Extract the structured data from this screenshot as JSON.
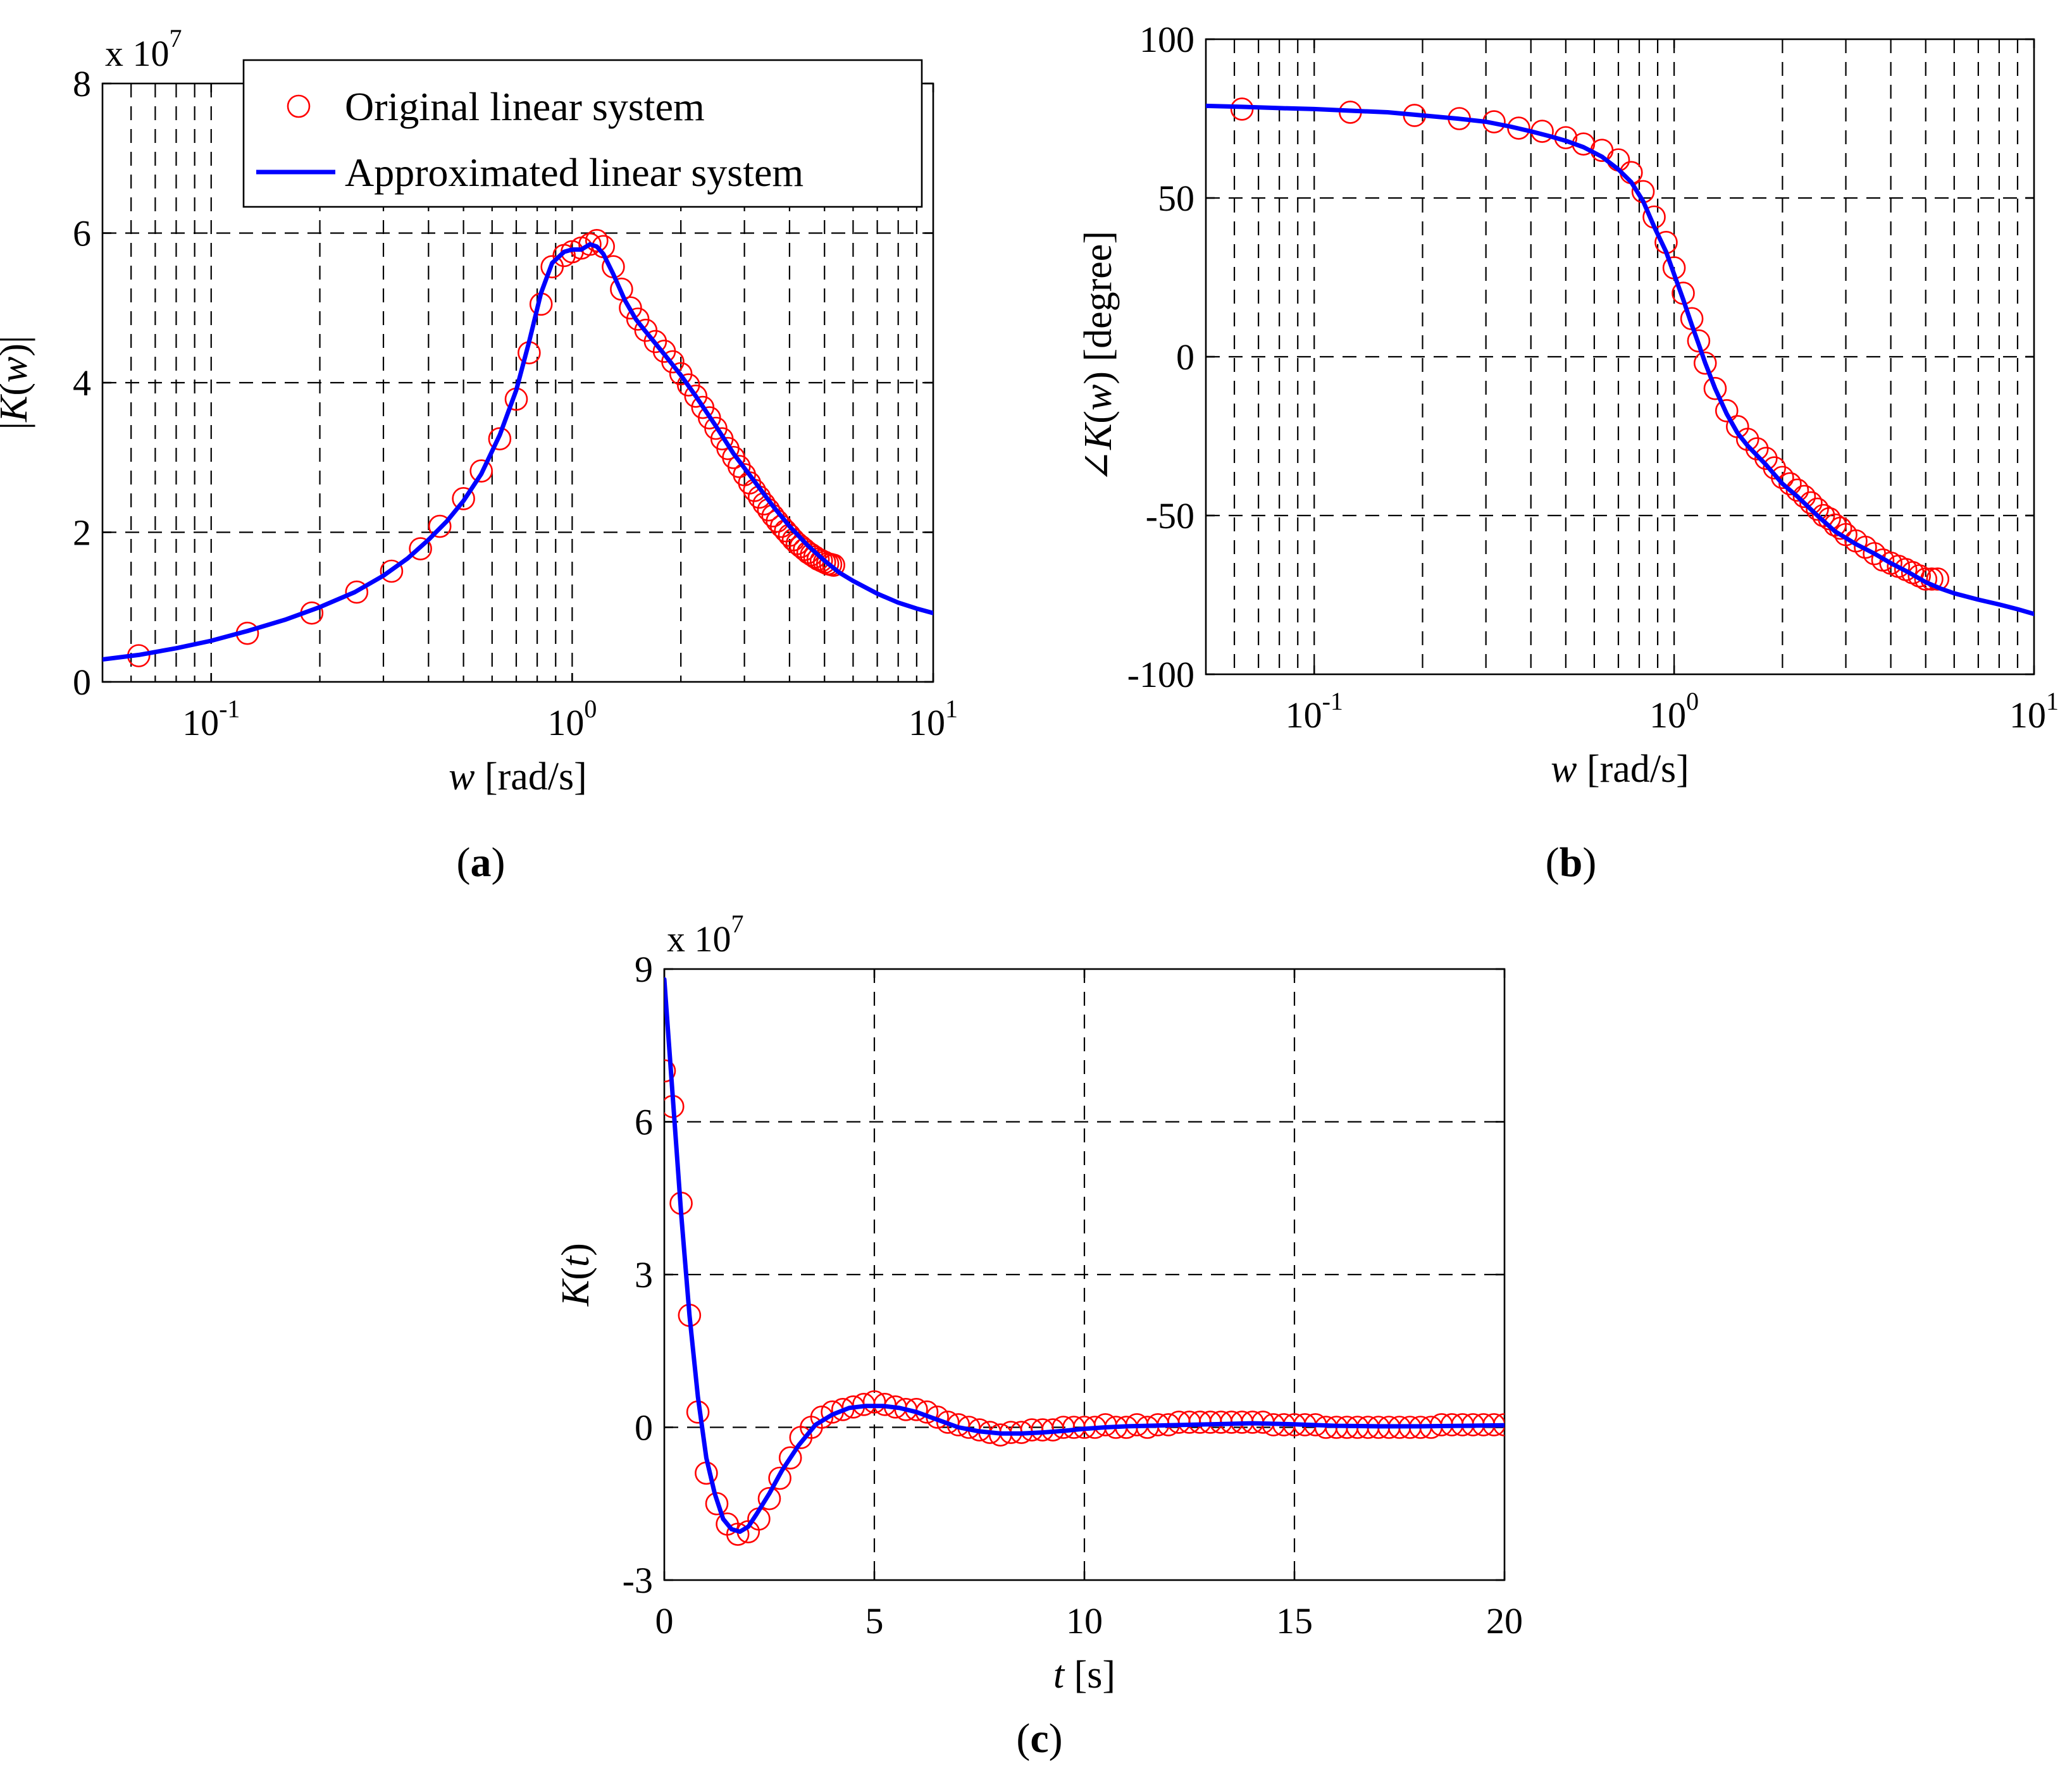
{
  "chart_data": [
    {
      "panel": "a",
      "type": "line",
      "xscale": "log",
      "title": "",
      "xlabel_var": "w",
      "xlabel_unit": " [rad/s]",
      "ylabel_pre": "|",
      "ylabel_var": "K",
      "ylabel_mid": "(",
      "ylabel_var2": "w",
      "ylabel_post": ")|",
      "xlim": [
        0.05,
        10
      ],
      "ylim": [
        0,
        8
      ],
      "y_multiplier_base": "x 10",
      "y_multiplier_exp": "7",
      "xticks": [
        {
          "value": 0.1,
          "base": "10",
          "exp": "-1"
        },
        {
          "value": 1,
          "base": "10",
          "exp": "0"
        },
        {
          "value": 10,
          "base": "10",
          "exp": "1"
        }
      ],
      "yticks": [
        0,
        2,
        4,
        6,
        8
      ],
      "caption": "a",
      "legend": {
        "position": "top",
        "entries": [
          "Original linear system",
          "Approximated linear system"
        ]
      },
      "series": [
        {
          "name": "Original linear system",
          "marker": "circle",
          "color": "#ff0000",
          "x": [
            0.063,
            0.126,
            0.19,
            0.253,
            0.316,
            0.38,
            0.43,
            0.5,
            0.56,
            0.63,
            0.7,
            0.76,
            0.82,
            0.88,
            0.95,
            1.0,
            1.06,
            1.12,
            1.17,
            1.22,
            1.3,
            1.37,
            1.45,
            1.52,
            1.6,
            1.7,
            1.8,
            1.9,
            2.0,
            2.1,
            2.2,
            2.3,
            2.4,
            2.5,
            2.6,
            2.7,
            2.8,
            2.9,
            3.0,
            3.1,
            3.2,
            3.3,
            3.4,
            3.5,
            3.6,
            3.7,
            3.8,
            3.9,
            4.0,
            4.1,
            4.2,
            4.3,
            4.4,
            4.5,
            4.6,
            4.7,
            4.8,
            4.9,
            5.0,
            5.1,
            5.2,
            5.3
          ],
          "y": [
            0.35,
            0.65,
            0.92,
            1.2,
            1.48,
            1.78,
            2.08,
            2.45,
            2.82,
            3.25,
            3.78,
            4.4,
            5.05,
            5.55,
            5.7,
            5.75,
            5.8,
            5.85,
            5.9,
            5.82,
            5.55,
            5.25,
            5.0,
            4.85,
            4.7,
            4.55,
            4.42,
            4.28,
            4.12,
            3.97,
            3.82,
            3.67,
            3.53,
            3.39,
            3.25,
            3.12,
            3.0,
            2.88,
            2.77,
            2.66,
            2.56,
            2.47,
            2.38,
            2.3,
            2.22,
            2.15,
            2.08,
            2.02,
            1.96,
            1.9,
            1.85,
            1.81,
            1.77,
            1.73,
            1.7,
            1.67,
            1.64,
            1.62,
            1.6,
            1.58,
            1.57,
            1.56
          ]
        },
        {
          "name": "Approximated linear system",
          "marker": "none",
          "color": "#0000ff",
          "x": [
            0.05,
            0.063,
            0.08,
            0.1,
            0.126,
            0.16,
            0.2,
            0.25,
            0.3,
            0.35,
            0.4,
            0.45,
            0.5,
            0.56,
            0.63,
            0.7,
            0.76,
            0.82,
            0.88,
            0.95,
            1.0,
            1.06,
            1.12,
            1.17,
            1.22,
            1.3,
            1.4,
            1.5,
            1.6,
            1.8,
            2.0,
            2.2,
            2.5,
            2.8,
            3.2,
            3.6,
            4.0,
            4.5,
            5.0,
            5.5,
            6.0,
            7.0,
            8.0,
            9.0,
            10.0
          ],
          "y": [
            0.3,
            0.36,
            0.45,
            0.55,
            0.68,
            0.83,
            1.0,
            1.2,
            1.42,
            1.65,
            1.9,
            2.15,
            2.42,
            2.78,
            3.3,
            3.9,
            4.55,
            5.2,
            5.6,
            5.75,
            5.78,
            5.78,
            5.85,
            5.82,
            5.72,
            5.45,
            5.1,
            4.85,
            4.68,
            4.38,
            4.1,
            3.82,
            3.42,
            3.05,
            2.68,
            2.35,
            2.08,
            1.82,
            1.62,
            1.46,
            1.35,
            1.18,
            1.06,
            0.98,
            0.92
          ]
        }
      ]
    },
    {
      "panel": "b",
      "type": "line",
      "xscale": "log",
      "title": "",
      "xlabel_var": "w",
      "xlabel_unit": " [rad/s]",
      "ylabel_pre": "∠",
      "ylabel_var": "K",
      "ylabel_mid": "(",
      "ylabel_var2": "w",
      "ylabel_post": ") [degree]",
      "xlim": [
        0.05,
        10
      ],
      "ylim": [
        -100,
        100
      ],
      "xticks": [
        {
          "value": 0.1,
          "base": "10",
          "exp": "-1"
        },
        {
          "value": 1,
          "base": "10",
          "exp": "0"
        },
        {
          "value": 10,
          "base": "10",
          "exp": "1"
        }
      ],
      "yticks": [
        -100,
        -50,
        0,
        50,
        100
      ],
      "caption": "b",
      "series": [
        {
          "name": "Original linear system",
          "marker": "circle",
          "color": "#ff0000",
          "x": [
            0.063,
            0.126,
            0.19,
            0.253,
            0.316,
            0.37,
            0.43,
            0.5,
            0.56,
            0.63,
            0.7,
            0.76,
            0.82,
            0.88,
            0.95,
            1.0,
            1.06,
            1.12,
            1.17,
            1.22,
            1.3,
            1.4,
            1.5,
            1.6,
            1.7,
            1.8,
            1.9,
            2.0,
            2.1,
            2.2,
            2.3,
            2.4,
            2.5,
            2.6,
            2.7,
            2.8,
            2.9,
            3.0,
            3.2,
            3.4,
            3.6,
            3.8,
            4.0,
            4.2,
            4.4,
            4.6,
            4.8,
            5.0,
            5.2,
            5.4
          ],
          "y": [
            78,
            77,
            76,
            75,
            74,
            72,
            71,
            69,
            67,
            65,
            62,
            58,
            52,
            44,
            36,
            28,
            20,
            12,
            5,
            -2,
            -10,
            -17,
            -22,
            -26,
            -29,
            -32,
            -35,
            -38,
            -40,
            -42,
            -44,
            -46,
            -48,
            -50,
            -51,
            -53,
            -54,
            -56,
            -58,
            -60,
            -62,
            -64,
            -65,
            -66,
            -67,
            -68,
            -69,
            -70,
            -70,
            -70
          ]
        },
        {
          "name": "Approximated linear system",
          "marker": "none",
          "color": "#0000ff",
          "x": [
            0.05,
            0.063,
            0.08,
            0.1,
            0.126,
            0.16,
            0.2,
            0.25,
            0.3,
            0.35,
            0.4,
            0.45,
            0.5,
            0.56,
            0.63,
            0.7,
            0.76,
            0.82,
            0.88,
            0.95,
            1.0,
            1.06,
            1.12,
            1.17,
            1.22,
            1.3,
            1.4,
            1.5,
            1.6,
            1.8,
            2.0,
            2.2,
            2.5,
            2.8,
            3.2,
            3.6,
            4.0,
            4.5,
            5.0,
            5.5,
            6.0,
            7.0,
            8.0,
            9.0,
            10.0
          ],
          "y": [
            79,
            78.7,
            78.3,
            78,
            77.5,
            77,
            76,
            75,
            74,
            72.5,
            71,
            69.5,
            68,
            66,
            63,
            59,
            55,
            49,
            41,
            33,
            26,
            18,
            10,
            4,
            -2,
            -10,
            -18,
            -24,
            -28,
            -34,
            -40,
            -44,
            -50,
            -55,
            -59,
            -62,
            -65,
            -68,
            -71,
            -73,
            -74.5,
            -76.5,
            -78,
            -79.5,
            -81
          ]
        }
      ]
    },
    {
      "panel": "c",
      "type": "line",
      "xscale": "linear",
      "title": "",
      "xlabel_var": "t",
      "xlabel_unit": " [s]",
      "ylabel_pre": "",
      "ylabel_var": "K",
      "ylabel_mid": "(",
      "ylabel_var2": "t",
      "ylabel_post": ")",
      "xlim": [
        0,
        20
      ],
      "ylim": [
        -3,
        9
      ],
      "y_multiplier_base": "x 10",
      "y_multiplier_exp": "7",
      "xticks": [
        {
          "value": 0,
          "label": "0"
        },
        {
          "value": 5,
          "label": "5"
        },
        {
          "value": 10,
          "label": "10"
        },
        {
          "value": 15,
          "label": "15"
        },
        {
          "value": 20,
          "label": "20"
        }
      ],
      "yticks": [
        -3,
        0,
        3,
        6,
        9
      ],
      "caption": "c",
      "series": [
        {
          "name": "Original linear system",
          "marker": "circle",
          "color": "#ff0000",
          "x": [
            0.0,
            0.2,
            0.4,
            0.6,
            0.8,
            1.0,
            1.25,
            1.5,
            1.75,
            2.0,
            2.25,
            2.5,
            2.75,
            3.0,
            3.25,
            3.5,
            3.75,
            4.0,
            4.25,
            4.5,
            4.75,
            5.0,
            5.25,
            5.5,
            5.75,
            6.0,
            6.25,
            6.5,
            6.75,
            7.0,
            7.25,
            7.5,
            7.75,
            8.0,
            8.25,
            8.5,
            8.75,
            9.0,
            9.25,
            9.5,
            9.75,
            10.0,
            10.25,
            10.5,
            10.75,
            11.0,
            11.25,
            11.5,
            11.75,
            12.0,
            12.25,
            12.5,
            12.75,
            13.0,
            13.25,
            13.5,
            13.75,
            14.0,
            14.25,
            14.5,
            14.75,
            15.0,
            15.25,
            15.5,
            15.75,
            16.0,
            16.25,
            16.5,
            16.75,
            17.0,
            17.25,
            17.5,
            17.75,
            18.0,
            18.25,
            18.5,
            18.75,
            19.0,
            19.25,
            19.5,
            19.75,
            20.0
          ],
          "y": [
            7.0,
            6.3,
            4.4,
            2.2,
            0.3,
            -0.9,
            -1.5,
            -1.9,
            -2.1,
            -2.05,
            -1.8,
            -1.4,
            -1.0,
            -0.6,
            -0.2,
            0.0,
            0.2,
            0.3,
            0.35,
            0.4,
            0.45,
            0.5,
            0.45,
            0.4,
            0.35,
            0.35,
            0.3,
            0.2,
            0.1,
            0.05,
            0.0,
            -0.05,
            -0.1,
            -0.15,
            -0.1,
            -0.1,
            -0.05,
            -0.05,
            -0.05,
            0.0,
            0.0,
            0.0,
            0.0,
            0.05,
            0.0,
            0.0,
            0.05,
            0.0,
            0.05,
            0.05,
            0.1,
            0.1,
            0.1,
            0.1,
            0.1,
            0.1,
            0.1,
            0.1,
            0.1,
            0.05,
            0.05,
            0.05,
            0.05,
            0.05,
            0.0,
            0.0,
            0.0,
            0.0,
            0.0,
            0.0,
            0.0,
            0.0,
            0.0,
            0.0,
            0.0,
            0.05,
            0.05,
            0.05,
            0.05,
            0.05,
            0.05,
            0.05
          ]
        },
        {
          "name": "Approximated linear system",
          "marker": "none",
          "color": "#0000ff",
          "x": [
            0.0,
            0.2,
            0.4,
            0.6,
            0.8,
            1.0,
            1.2,
            1.4,
            1.6,
            1.8,
            2.0,
            2.2,
            2.5,
            2.8,
            3.2,
            3.6,
            4.0,
            4.4,
            4.8,
            5.2,
            5.6,
            6.0,
            6.5,
            7.0,
            7.5,
            8.0,
            8.5,
            9.0,
            9.5,
            10.0,
            10.5,
            11.0,
            11.5,
            12.0,
            13.0,
            14.0,
            15.0,
            16.0,
            17.0,
            18.0,
            19.0,
            20.0
          ],
          "y": [
            8.8,
            6.5,
            4.2,
            2.2,
            0.6,
            -0.6,
            -1.3,
            -1.8,
            -2.0,
            -2.05,
            -1.95,
            -1.7,
            -1.3,
            -0.85,
            -0.35,
            0.05,
            0.25,
            0.38,
            0.42,
            0.42,
            0.38,
            0.3,
            0.15,
            0.0,
            -0.08,
            -0.12,
            -0.12,
            -0.1,
            -0.07,
            -0.03,
            0.0,
            0.02,
            0.03,
            0.04,
            0.06,
            0.08,
            0.06,
            0.03,
            0.02,
            0.02,
            0.03,
            0.04
          ]
        }
      ]
    }
  ]
}
